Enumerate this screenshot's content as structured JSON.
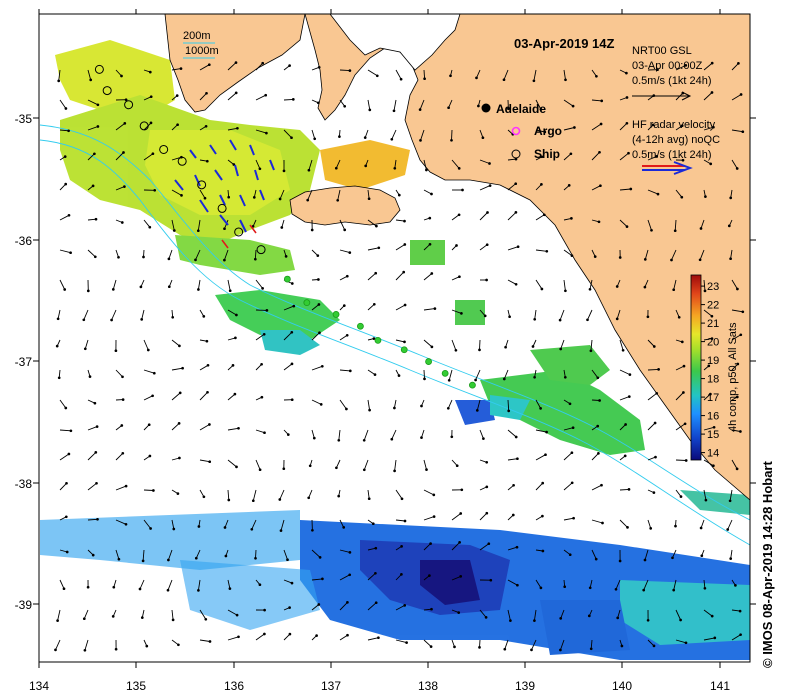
{
  "title": "03-Apr-2019 14Z",
  "credit": "© IMOS 08-Apr-2019 14:28 Hobart",
  "bathymetry_legend": {
    "line1": "200m",
    "line2": "1000m"
  },
  "places": [
    {
      "label": "Adelaide",
      "lon": 138.45,
      "lat": -34.93
    }
  ],
  "marker_legend": {
    "argo": "Argo",
    "ship": "Ship"
  },
  "wind_legend": {
    "line1": "NRT00 GSL",
    "line2": "03-Apr 00:00Z",
    "line3": "0.5m/s (1kt 24h)"
  },
  "radar_legend": {
    "line1": "HF radar velocity",
    "line2": "(4-12h avg) noQC",
    "line3": "0.5m/s (1kt 24h)"
  },
  "colorbar": {
    "label": "4h comp, p50, All Sats",
    "ticks": [
      "23",
      "22",
      "21",
      "20",
      "19",
      "18",
      "17",
      "16",
      "15",
      "14"
    ],
    "min": 13.6,
    "max": 23.6
  },
  "axes": {
    "x_ticks": [
      "134",
      "135",
      "136",
      "137",
      "138",
      "139",
      "140",
      "141"
    ],
    "y_ticks": [
      "-35",
      "-36",
      "-37",
      "-38",
      "-39"
    ],
    "lon_range": [
      134,
      141.3
    ],
    "lat_range": [
      -34.05,
      -39.55
    ]
  },
  "colors": {
    "land": "#f9c792",
    "contour": "#33ccee",
    "ship": "#000000",
    "argo": "#33cc33"
  },
  "ship_track": [
    [
      134.62,
      -34.52
    ],
    [
      134.7,
      -34.7
    ],
    [
      134.92,
      -34.82
    ],
    [
      135.08,
      -35.0
    ],
    [
      135.28,
      -35.2
    ],
    [
      135.47,
      -35.3
    ],
    [
      135.67,
      -35.5
    ],
    [
      135.88,
      -35.7
    ],
    [
      136.05,
      -35.9
    ],
    [
      136.28,
      -36.05
    ]
  ],
  "argo_floats": [
    [
      136.55,
      -36.3
    ],
    [
      136.75,
      -36.5
    ],
    [
      137.05,
      -36.6
    ],
    [
      137.3,
      -36.7
    ],
    [
      137.48,
      -36.82
    ],
    [
      137.75,
      -36.9
    ],
    [
      138.0,
      -37.0
    ],
    [
      138.17,
      -37.1
    ],
    [
      138.45,
      -37.2
    ]
  ]
}
